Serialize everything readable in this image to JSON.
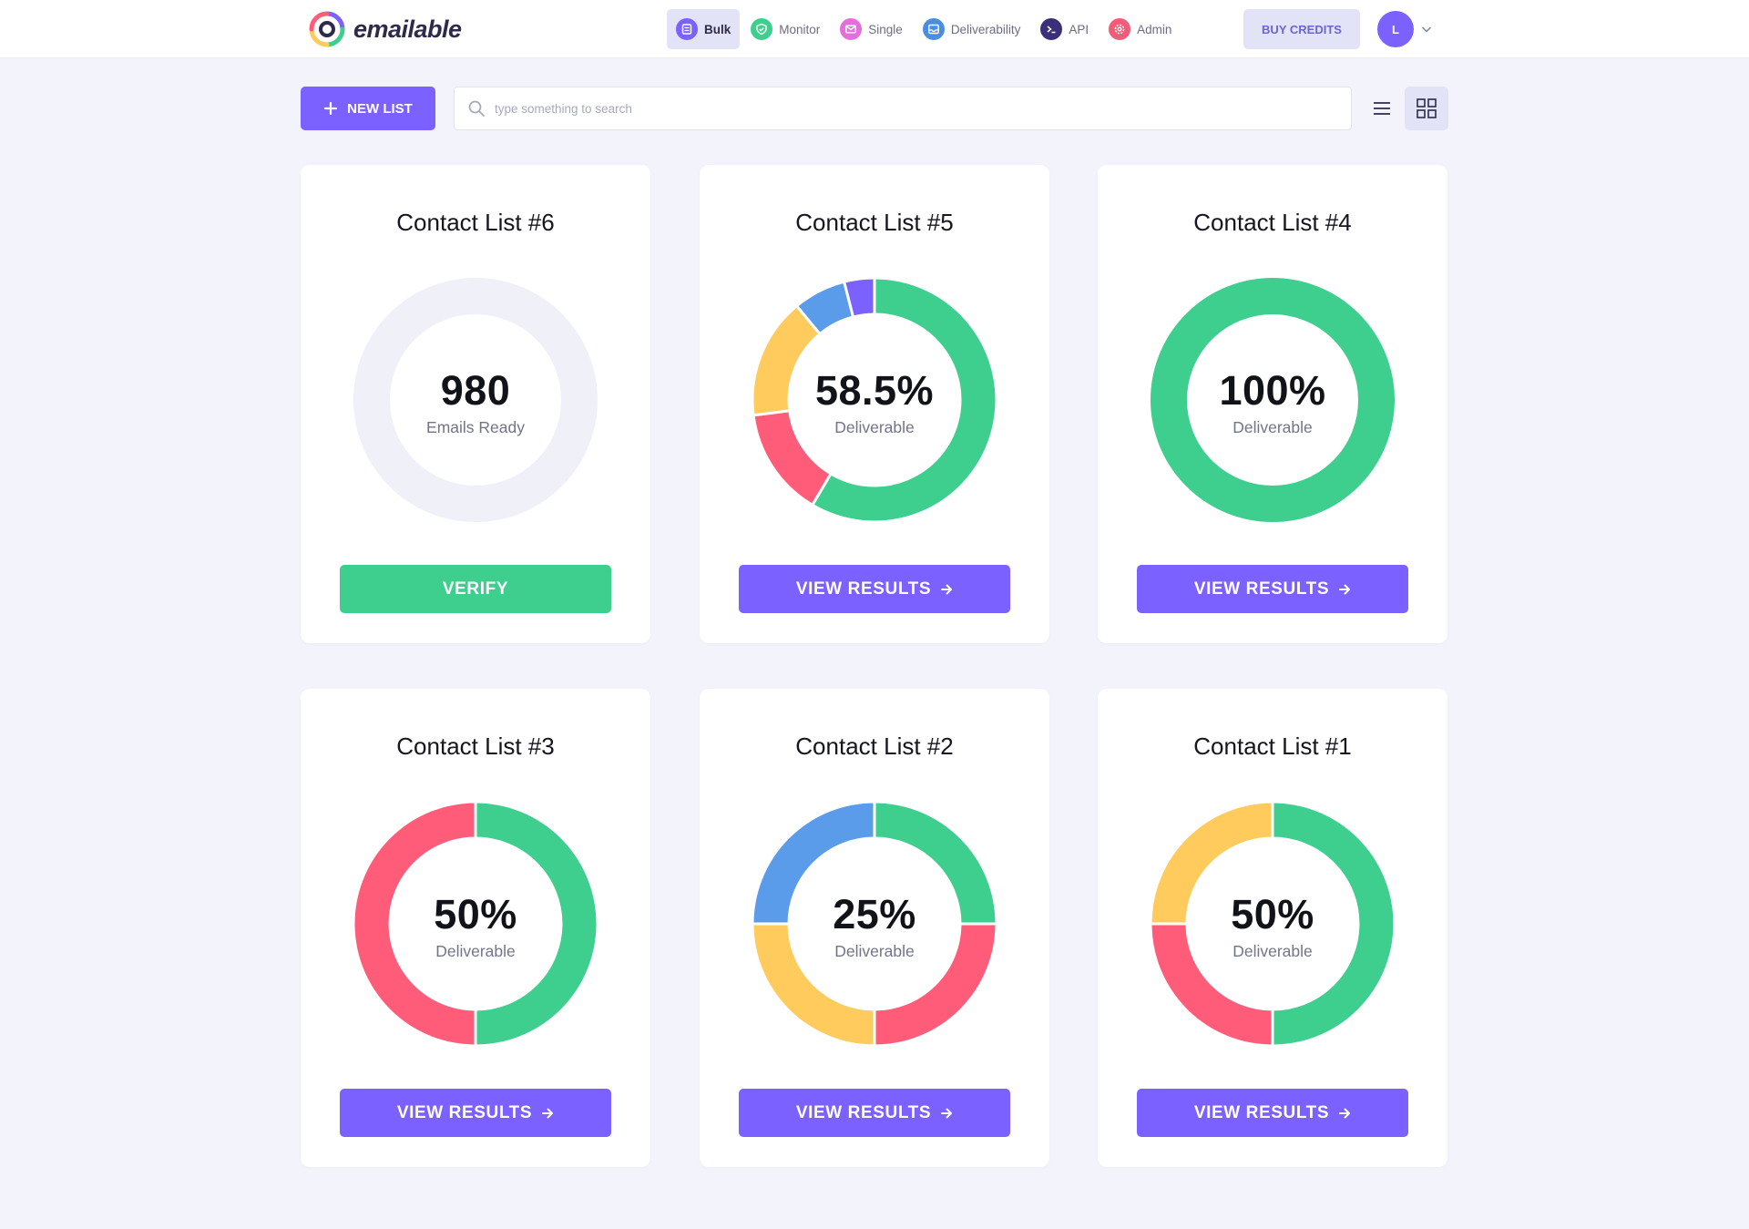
{
  "brand": {
    "name": "emailable"
  },
  "nav": [
    {
      "label": "Bulk",
      "icon": "bulk-icon",
      "color": "#7b61ff",
      "active": true
    },
    {
      "label": "Monitor",
      "icon": "shield-check-icon",
      "color": "#3ecf8e",
      "active": false
    },
    {
      "label": "Single",
      "icon": "envelope-icon",
      "color": "#e36fd8",
      "active": false
    },
    {
      "label": "Deliverability",
      "icon": "inbox-icon",
      "color": "#4b8de0",
      "active": false
    },
    {
      "label": "API",
      "icon": "terminal-icon",
      "color": "#3b2f7a",
      "active": false
    },
    {
      "label": "Admin",
      "icon": "gear-icon",
      "color": "#f25c78",
      "active": false
    }
  ],
  "header": {
    "buy_credits": "BUY CREDITS",
    "avatar_initial": "L"
  },
  "toolbar": {
    "new_list": "NEW LIST",
    "search_placeholder": "type something to search"
  },
  "colors": {
    "accent": "#7b61ff",
    "deliverable": "#3ecf8e",
    "undeliverable": "#ff5c7a",
    "risky": "#ffcb5c",
    "unknown": "#5a9bea",
    "duplicate": "#7b61ff",
    "empty": "#f0f0f8"
  },
  "cards": [
    {
      "title": "Contact List #6",
      "value": "980",
      "sublabel": "Emails Ready",
      "button": "VERIFY",
      "button_type": "verify",
      "segments": []
    },
    {
      "title": "Contact List #5",
      "value": "58.5%",
      "sublabel": "Deliverable",
      "button": "VIEW RESULTS",
      "button_type": "results",
      "segments": [
        {
          "color": "#3ecf8e",
          "pct": 58.5
        },
        {
          "color": "#ff5c7a",
          "pct": 14.5
        },
        {
          "color": "#ffcb5c",
          "pct": 16.0
        },
        {
          "color": "#5a9bea",
          "pct": 7.0
        },
        {
          "color": "#7b61ff",
          "pct": 4.0
        }
      ]
    },
    {
      "title": "Contact List #4",
      "value": "100%",
      "sublabel": "Deliverable",
      "button": "VIEW RESULTS",
      "button_type": "results",
      "segments": [
        {
          "color": "#3ecf8e",
          "pct": 100
        }
      ]
    },
    {
      "title": "Contact List #3",
      "value": "50%",
      "sublabel": "Deliverable",
      "button": "VIEW RESULTS",
      "button_type": "results",
      "segments": [
        {
          "color": "#3ecf8e",
          "pct": 50
        },
        {
          "color": "#ff5c7a",
          "pct": 50
        }
      ]
    },
    {
      "title": "Contact List #2",
      "value": "25%",
      "sublabel": "Deliverable",
      "button": "VIEW RESULTS",
      "button_type": "results",
      "segments": [
        {
          "color": "#3ecf8e",
          "pct": 25
        },
        {
          "color": "#ff5c7a",
          "pct": 25
        },
        {
          "color": "#ffcb5c",
          "pct": 25
        },
        {
          "color": "#5a9bea",
          "pct": 25
        }
      ]
    },
    {
      "title": "Contact List #1",
      "value": "50%",
      "sublabel": "Deliverable",
      "button": "VIEW RESULTS",
      "button_type": "results",
      "segments": [
        {
          "color": "#3ecf8e",
          "pct": 50
        },
        {
          "color": "#ff5c7a",
          "pct": 25
        },
        {
          "color": "#ffcb5c",
          "pct": 25
        }
      ]
    }
  ]
}
